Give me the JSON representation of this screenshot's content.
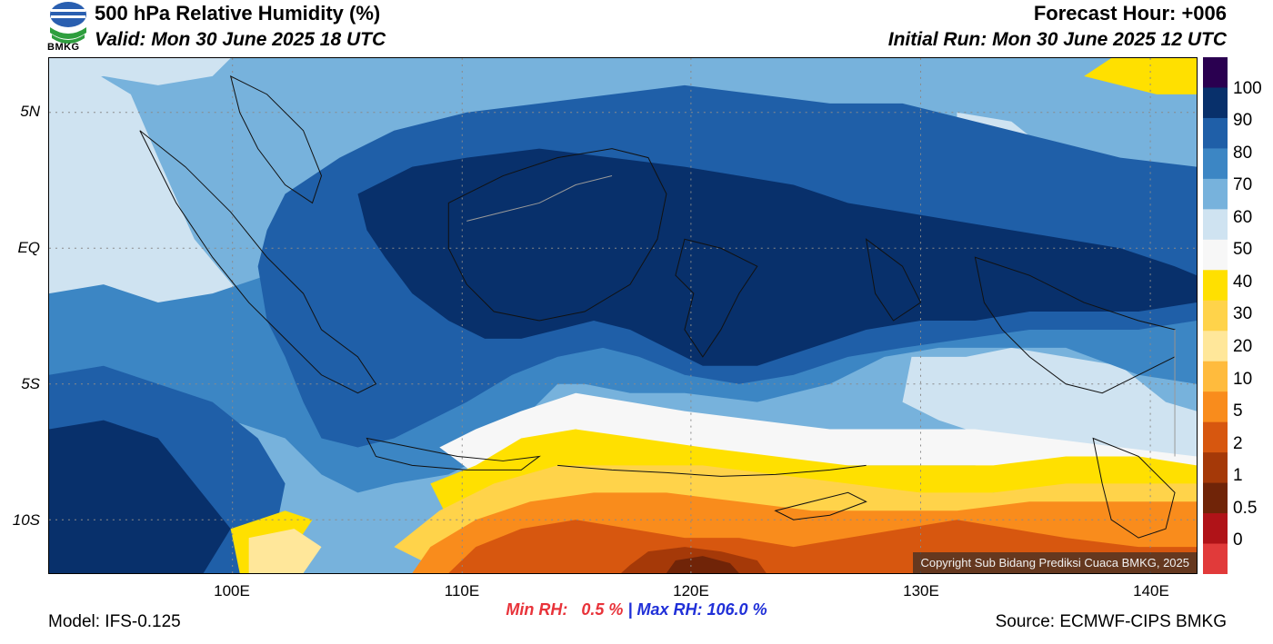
{
  "header": {
    "title": "500 hPa Relative Humidity (%)",
    "valid": "Valid: Mon 30 June 2025 18 UTC",
    "forecast_hour": "Forecast Hour: +006",
    "initial_run": "Initial Run: Mon 30 June 2025 12 UTC"
  },
  "logo": {
    "text": "BMKG",
    "icon": "bmkg-logo-icon"
  },
  "axes": {
    "lat_labels": [
      "5N",
      "EQ",
      "5S",
      "10S"
    ],
    "lon_labels": [
      "100E",
      "110E",
      "120E",
      "130E",
      "140E"
    ]
  },
  "colorbar": {
    "labels": [
      "100",
      "90",
      "80",
      "70",
      "60",
      "50",
      "40",
      "30",
      "20",
      "10",
      "5",
      "2",
      "1",
      "0.5",
      "0"
    ],
    "colors": [
      "#2a0050",
      "#08306b",
      "#1f5fa8",
      "#3c86c4",
      "#77b2dc",
      "#cfe3f1",
      "#f7f7f7",
      "#ffe000",
      "#ffd34a",
      "#ffe79a",
      "#ffbb3d",
      "#f98c1c",
      "#d7570f",
      "#a53908",
      "#702408",
      "#b01318",
      "#e13a3a"
    ]
  },
  "stats": {
    "min": "Min RH:   0.5 %",
    "sep": "|",
    "max": "Max RH: 106.0 %"
  },
  "footer": {
    "model": "Model: IFS-0.125",
    "source": "Source: ECMWF-CIPS BMKG",
    "copyright": "Copyright Sub Bidang Prediksi Cuaca BMKG, 2025"
  }
}
